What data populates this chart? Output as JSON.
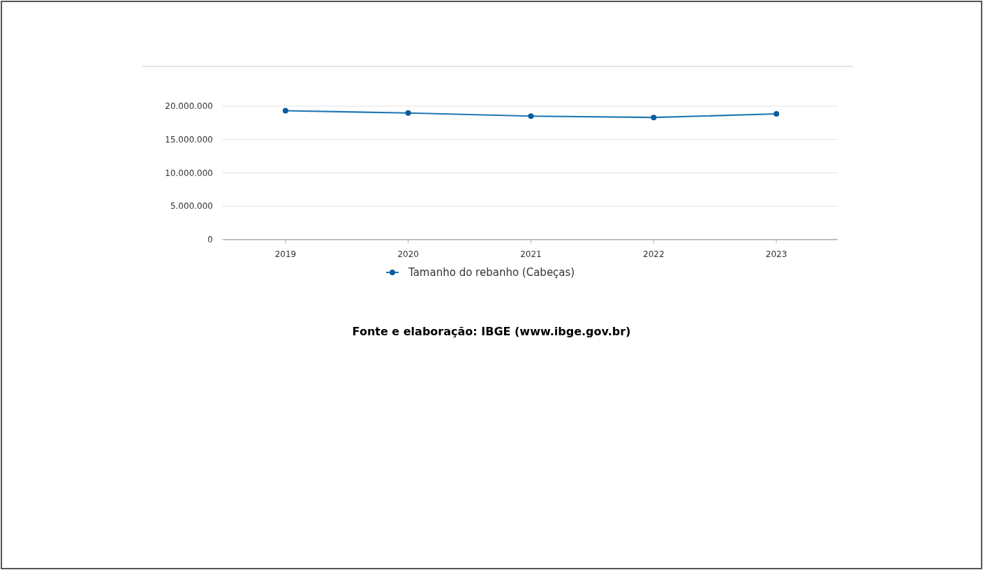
{
  "chart_data": {
    "type": "line",
    "categories": [
      "2019",
      "2020",
      "2021",
      "2022",
      "2023"
    ],
    "series": [
      {
        "name": "Tamanho do rebanho (Cabeças)",
        "color": "#1f77b4",
        "values": [
          19320000,
          18980000,
          18510000,
          18310000,
          18850000
        ]
      }
    ],
    "ylim": [
      0,
      20000000
    ],
    "yticks": [
      {
        "value": 0,
        "label": "0"
      },
      {
        "value": 5000000,
        "label": "5.000.000"
      },
      {
        "value": 10000000,
        "label": "10.000.000"
      },
      {
        "value": 15000000,
        "label": "15.000.000"
      },
      {
        "value": 20000000,
        "label": "20.000.000"
      }
    ],
    "grid": "y",
    "legend": "bottom",
    "marker": "circle",
    "line_style": "solid",
    "annotations": [
      "Fonte e elaboração: IBGE (www.ibge.gov.br)"
    ]
  }
}
